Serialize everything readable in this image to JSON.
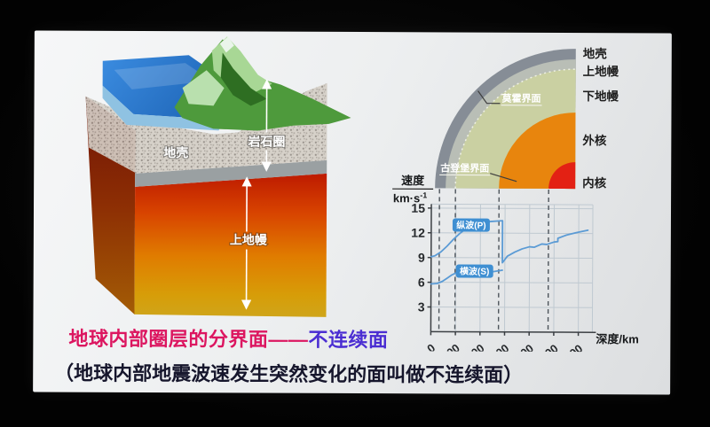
{
  "heading": {
    "part1": "地球内部圈层的分界面——",
    "part2": "不连续面",
    "color1": "#dc1660",
    "color2": "#4b2ed2"
  },
  "subheading": "（地球内部地震波速发生突然变化的面叫做不连续面）",
  "block": {
    "crust": "地壳",
    "lithosphere": "岩石圈",
    "upper_mantle": "上地幔"
  },
  "section": {
    "labels": [
      "地壳",
      "上地幔",
      "下地幔",
      "外核",
      "内核"
    ],
    "moho": "莫霍界面",
    "gutenberg": "古登堡界面",
    "layer_colors": [
      "#868d96",
      "#b9beb6",
      "#cad0a2",
      "#e8850d",
      "#e32114"
    ]
  },
  "chart_data": {
    "type": "line",
    "ylabel_num": "速度",
    "ylabel_den": "km·s",
    "ylabel_den_sup": "-1",
    "xlabel": "深度/km",
    "x_ticks": [
      0,
      1000,
      2000,
      3000,
      4000,
      5000,
      6000
    ],
    "y_ticks": [
      3,
      6,
      9,
      12,
      15
    ],
    "xlim": [
      0,
      6570
    ],
    "ylim": [
      0,
      15.5
    ],
    "grid": true,
    "legend_position": "on-curve-badges",
    "boundary_depths_km": [
      330,
      980,
      2750,
      4770
    ],
    "series": [
      {
        "name": "纵波(P)",
        "color": "#5b9bd5",
        "x": [
          0,
          150,
          400,
          650,
          900,
          1150,
          1400,
          1700,
          2000,
          2400,
          2900,
          2900,
          3100,
          3400,
          3700,
          4000,
          4200,
          4500,
          4700,
          5000,
          5150,
          5150,
          5500,
          5900,
          6371
        ],
        "y": [
          9.1,
          9.2,
          9.7,
          10.4,
          11.2,
          11.9,
          12.5,
          12.9,
          13.2,
          13.4,
          13.5,
          8.4,
          9.2,
          9.7,
          10.1,
          10.35,
          10.3,
          10.7,
          10.65,
          10.95,
          11.0,
          11.4,
          11.8,
          12.1,
          12.4
        ]
      },
      {
        "name": "横波(S)",
        "color": "#5b9bd5",
        "x": [
          0,
          250,
          450,
          650,
          850,
          1050,
          1300,
          1700,
          2100,
          2500,
          2900
        ],
        "y": [
          5.8,
          5.85,
          6.1,
          6.5,
          6.9,
          7.2,
          7.4,
          7.45,
          7.35,
          7.3,
          7.5
        ]
      }
    ]
  }
}
